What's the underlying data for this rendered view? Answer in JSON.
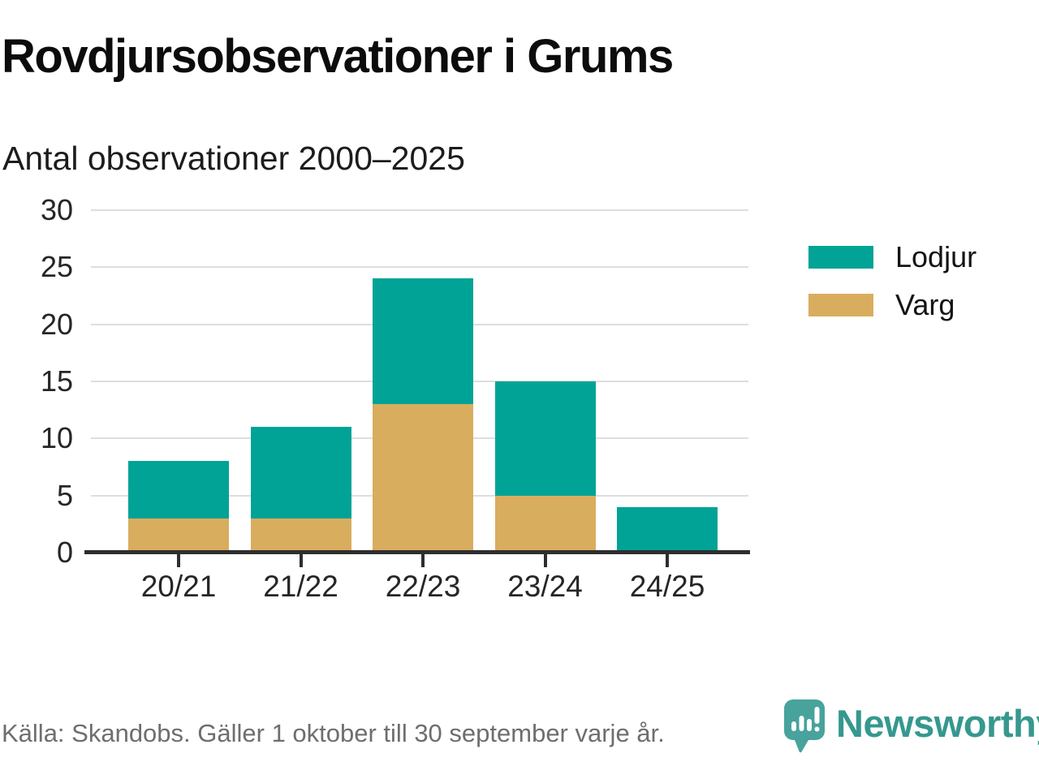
{
  "header": {
    "title": "Rovdjursobservationer i Grums",
    "subtitle": "Antal observationer 2000–2025"
  },
  "chart_data": {
    "type": "bar",
    "stacked": true,
    "title": "Rovdjursobservationer i Grums",
    "subtitle": "Antal observationer 2000–2025",
    "categories": [
      "20/21",
      "21/22",
      "22/23",
      "23/24",
      "24/25"
    ],
    "series": [
      {
        "name": "Lodjur",
        "color": "#00a396",
        "values": [
          5,
          8,
          11,
          10,
          4
        ]
      },
      {
        "name": "Varg",
        "color": "#d9ad5e",
        "values": [
          3,
          3,
          13,
          5,
          0
        ]
      }
    ],
    "stacked_totals": [
      8,
      11,
      24,
      15,
      4
    ],
    "stack_order_bottom_to_top": [
      "Varg",
      "Lodjur"
    ],
    "xlabel": "",
    "ylabel": "",
    "ylim": [
      0,
      30
    ],
    "yticks": [
      0,
      5,
      10,
      15,
      20,
      25,
      30
    ],
    "grid": "horizontal",
    "legend_position": "right"
  },
  "footer": {
    "source": "Källa: Skandobs. Gäller 1 oktober till 30 september varje år.",
    "brand": "Newsworthy"
  },
  "colors": {
    "lodjur_teal": "#00a396",
    "varg_gold": "#d9ad5e",
    "brand_teal": "#35988f",
    "icon_teal": "#47a39c",
    "gridline": "#dedede",
    "axis": "#2e2e2e",
    "source_gray": "#6e6e6e"
  }
}
